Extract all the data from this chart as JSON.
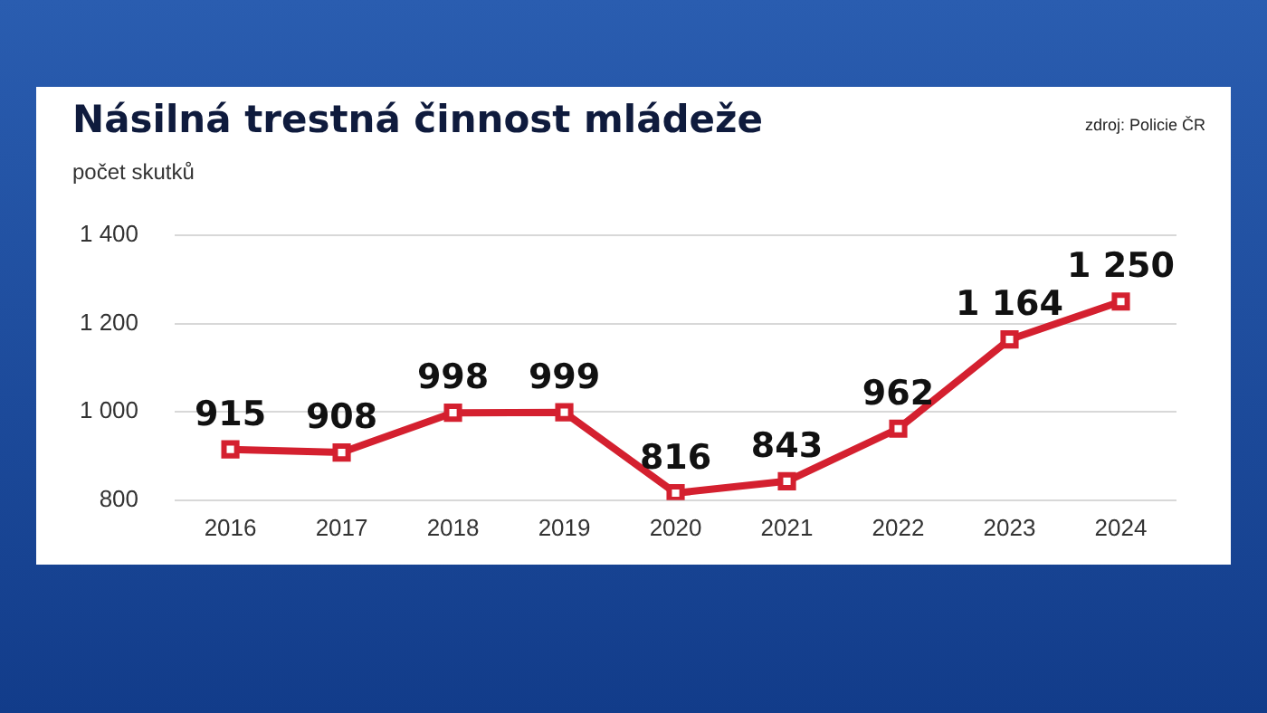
{
  "chart_data": {
    "type": "line",
    "title": "Násilná trestná činnost mládeže",
    "ylabel": "počet skutků",
    "annotations": [
      "zdroj: Policie ČR"
    ],
    "categories": [
      "2016",
      "2017",
      "2018",
      "2019",
      "2020",
      "2021",
      "2022",
      "2023",
      "2024"
    ],
    "series": [
      {
        "color": "#d4202f",
        "values": [
          915,
          908,
          998,
          999,
          816,
          843,
          962,
          1164,
          1250
        ],
        "value_labels": [
          "915",
          "908",
          "998",
          "999",
          "816",
          "843",
          "962",
          "1 164",
          "1 250"
        ]
      }
    ],
    "ylim": [
      800,
      1400
    ],
    "yticks": [
      800,
      {
        "value": 1000,
        "label": "1 000"
      },
      {
        "value": 1200,
        "label": "1 200"
      },
      {
        "value": 1400,
        "label": "1 400"
      }
    ],
    "grid": "y",
    "marker": "square",
    "line_style": "solid"
  }
}
